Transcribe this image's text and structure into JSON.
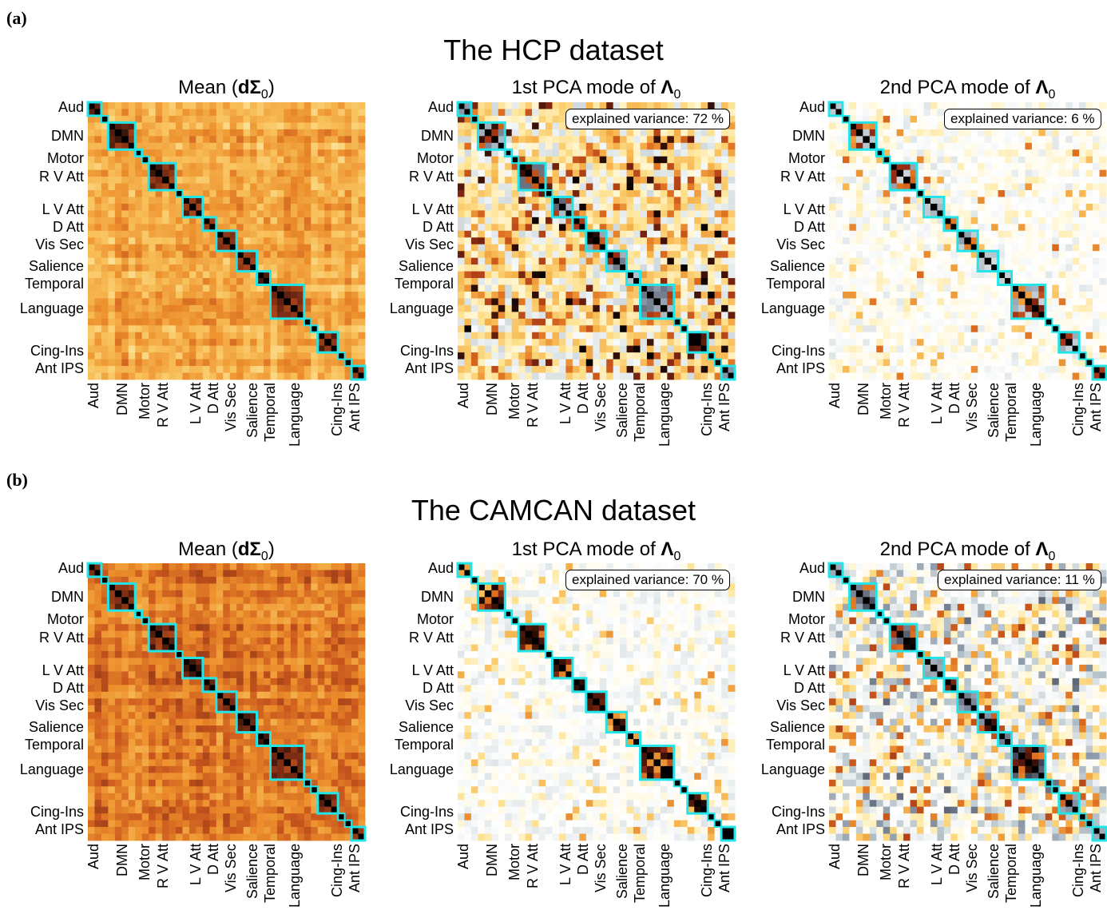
{
  "figure": {
    "panels": [
      {
        "letter": "(a)",
        "title": "The HCP dataset"
      },
      {
        "letter": "(b)",
        "title": "The CAMCAN dataset"
      }
    ],
    "subplot_titles": {
      "mean_prefix": "Mean (",
      "mean_symbol": "dΣ",
      "mean_sub": "0",
      "mean_suffix": ")",
      "pca1_prefix": "1st PCA mode of ",
      "pca2_prefix": "2nd PCA mode of ",
      "pca_symbol": "Λ",
      "pca_sub": "0"
    },
    "network_labels": [
      "Aud",
      "DMN",
      "Motor",
      "R V Att",
      "L V Att",
      "D Att",
      "Vis Sec",
      "Salience",
      "Temporal",
      "Language",
      "Cing-Ins",
      "Ant IPS"
    ],
    "colors": {
      "network_box": "#22e5ea",
      "diag": "#000000",
      "mean_scale": [
        "#fffbe0",
        "#fde9a4",
        "#f8c05a",
        "#ec8f2c",
        "#c9561d",
        "#7a2c14",
        "#000000"
      ],
      "pca_scale_neg": [
        "#ffffff",
        "#dfe6e8",
        "#b9c5cc",
        "#8a96a6",
        "#3c4050"
      ],
      "pca_scale_pos": [
        "#ffffff",
        "#fff5cf",
        "#fde08c",
        "#f6b24a",
        "#dd6d1f",
        "#9e2e14",
        "#000000"
      ]
    }
  },
  "chart_data": [
    {
      "type": "heatmap",
      "dataset": "HCP",
      "title": "Mean (dΣ0)",
      "matrix_size": 41,
      "network_blocks": [
        {
          "label": "Aud",
          "start": 0,
          "size": 2
        },
        {
          "label": "DMN",
          "start": 3,
          "size": 4
        },
        {
          "label": "Motor",
          "start": 7,
          "size": 1
        },
        {
          "label": "R V Att",
          "start": 9,
          "size": 4
        },
        {
          "label": "L V Att",
          "start": 14,
          "size": 3
        },
        {
          "label": "D Att",
          "start": 17,
          "size": 2
        },
        {
          "label": "Vis Sec",
          "start": 19,
          "size": 3
        },
        {
          "label": "Salience",
          "start": 22,
          "size": 3
        },
        {
          "label": "Temporal",
          "start": 25,
          "size": 2
        },
        {
          "label": "Language",
          "start": 27,
          "size": 5
        },
        {
          "label": "Cing-Ins",
          "start": 34,
          "size": 3
        },
        {
          "label": "Ant IPS",
          "start": 39,
          "size": 2
        }
      ],
      "value_range": [
        0,
        1
      ],
      "seed": 11,
      "kind": "mean"
    },
    {
      "type": "heatmap",
      "dataset": "HCP",
      "title": "1st PCA mode of Λ0",
      "annotation": "explained variance: 72 %",
      "matrix_size": 41,
      "network_blocks": [
        {
          "label": "Aud",
          "start": 0,
          "size": 2
        },
        {
          "label": "DMN",
          "start": 3,
          "size": 4
        },
        {
          "label": "Motor",
          "start": 7,
          "size": 1
        },
        {
          "label": "R V Att",
          "start": 9,
          "size": 4
        },
        {
          "label": "L V Att",
          "start": 14,
          "size": 3
        },
        {
          "label": "D Att",
          "start": 17,
          "size": 2
        },
        {
          "label": "Vis Sec",
          "start": 19,
          "size": 3
        },
        {
          "label": "Salience",
          "start": 22,
          "size": 3
        },
        {
          "label": "Temporal",
          "start": 25,
          "size": 2
        },
        {
          "label": "Language",
          "start": 27,
          "size": 5
        },
        {
          "label": "Cing-Ins",
          "start": 34,
          "size": 3
        },
        {
          "label": "Ant IPS",
          "start": 39,
          "size": 2
        }
      ],
      "value_range": [
        -1,
        1
      ],
      "seed": 23,
      "kind": "pca_dense"
    },
    {
      "type": "heatmap",
      "dataset": "HCP",
      "title": "2nd PCA mode of Λ0",
      "annotation": "explained variance: 6 %",
      "matrix_size": 41,
      "network_blocks": [
        {
          "label": "Aud",
          "start": 0,
          "size": 2
        },
        {
          "label": "DMN",
          "start": 3,
          "size": 4
        },
        {
          "label": "Motor",
          "start": 7,
          "size": 1
        },
        {
          "label": "R V Att",
          "start": 9,
          "size": 4
        },
        {
          "label": "L V Att",
          "start": 14,
          "size": 3
        },
        {
          "label": "D Att",
          "start": 17,
          "size": 2
        },
        {
          "label": "Vis Sec",
          "start": 19,
          "size": 3
        },
        {
          "label": "Salience",
          "start": 22,
          "size": 3
        },
        {
          "label": "Temporal",
          "start": 25,
          "size": 2
        },
        {
          "label": "Language",
          "start": 27,
          "size": 5
        },
        {
          "label": "Cing-Ins",
          "start": 34,
          "size": 3
        },
        {
          "label": "Ant IPS",
          "start": 39,
          "size": 2
        }
      ],
      "value_range": [
        -1,
        1
      ],
      "seed": 37,
      "kind": "pca_sparse"
    },
    {
      "type": "heatmap",
      "dataset": "CAMCAN",
      "title": "Mean (dΣ0)",
      "matrix_size": 41,
      "network_blocks": [
        {
          "label": "Aud",
          "start": 0,
          "size": 2
        },
        {
          "label": "DMN",
          "start": 3,
          "size": 4
        },
        {
          "label": "Motor",
          "start": 7,
          "size": 1
        },
        {
          "label": "R V Att",
          "start": 9,
          "size": 4
        },
        {
          "label": "L V Att",
          "start": 14,
          "size": 3
        },
        {
          "label": "D Att",
          "start": 17,
          "size": 2
        },
        {
          "label": "Vis Sec",
          "start": 19,
          "size": 3
        },
        {
          "label": "Salience",
          "start": 22,
          "size": 3
        },
        {
          "label": "Temporal",
          "start": 25,
          "size": 2
        },
        {
          "label": "Language",
          "start": 27,
          "size": 5
        },
        {
          "label": "Cing-Ins",
          "start": 34,
          "size": 3
        },
        {
          "label": "Ant IPS",
          "start": 39,
          "size": 2
        }
      ],
      "value_range": [
        0,
        1
      ],
      "seed": 41,
      "kind": "mean_dark"
    },
    {
      "type": "heatmap",
      "dataset": "CAMCAN",
      "title": "1st PCA mode of Λ0",
      "annotation": "explained variance: 70 %",
      "matrix_size": 41,
      "network_blocks": [
        {
          "label": "Aud",
          "start": 0,
          "size": 2
        },
        {
          "label": "DMN",
          "start": 3,
          "size": 4
        },
        {
          "label": "Motor",
          "start": 7,
          "size": 1
        },
        {
          "label": "R V Att",
          "start": 9,
          "size": 4
        },
        {
          "label": "L V Att",
          "start": 14,
          "size": 3
        },
        {
          "label": "D Att",
          "start": 17,
          "size": 2
        },
        {
          "label": "Vis Sec",
          "start": 19,
          "size": 3
        },
        {
          "label": "Salience",
          "start": 22,
          "size": 3
        },
        {
          "label": "Temporal",
          "start": 25,
          "size": 2
        },
        {
          "label": "Language",
          "start": 27,
          "size": 5
        },
        {
          "label": "Cing-Ins",
          "start": 34,
          "size": 3
        },
        {
          "label": "Ant IPS",
          "start": 39,
          "size": 2
        }
      ],
      "value_range": [
        -1,
        1
      ],
      "seed": 53,
      "kind": "pca_light"
    },
    {
      "type": "heatmap",
      "dataset": "CAMCAN",
      "title": "2nd PCA mode of Λ0",
      "annotation": "explained variance: 11 %",
      "matrix_size": 41,
      "network_blocks": [
        {
          "label": "Aud",
          "start": 0,
          "size": 2
        },
        {
          "label": "DMN",
          "start": 3,
          "size": 4
        },
        {
          "label": "Motor",
          "start": 7,
          "size": 1
        },
        {
          "label": "R V Att",
          "start": 9,
          "size": 4
        },
        {
          "label": "L V Att",
          "start": 14,
          "size": 3
        },
        {
          "label": "D Att",
          "start": 17,
          "size": 2
        },
        {
          "label": "Vis Sec",
          "start": 19,
          "size": 3
        },
        {
          "label": "Salience",
          "start": 22,
          "size": 3
        },
        {
          "label": "Temporal",
          "start": 25,
          "size": 2
        },
        {
          "label": "Language",
          "start": 27,
          "size": 5
        },
        {
          "label": "Cing-Ins",
          "start": 34,
          "size": 3
        },
        {
          "label": "Ant IPS",
          "start": 39,
          "size": 2
        }
      ],
      "value_range": [
        -1,
        1
      ],
      "seed": 67,
      "kind": "pca_mixed"
    }
  ]
}
